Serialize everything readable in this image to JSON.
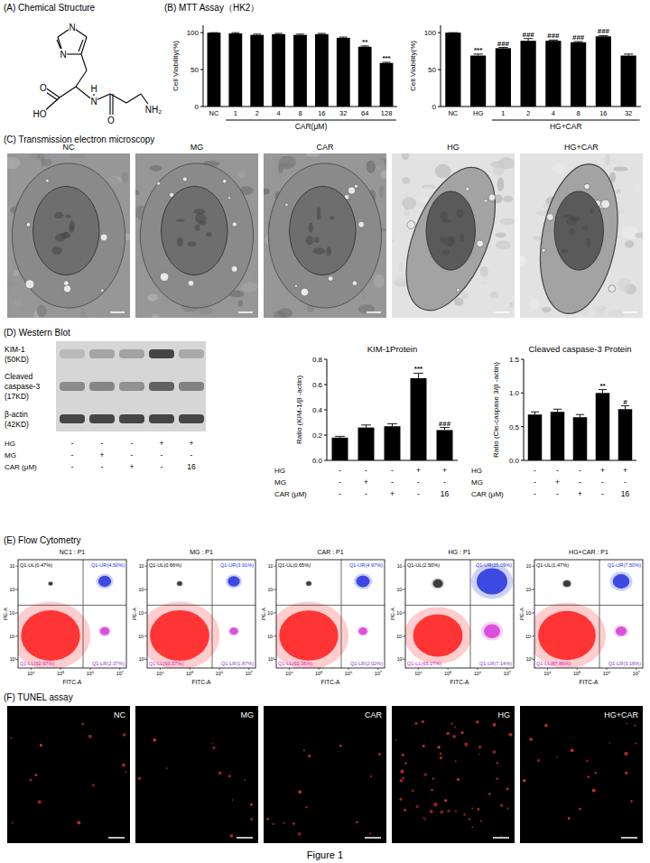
{
  "figure_label": "Figure 1",
  "panel_a": {
    "heading": "(A) Chemical Structure",
    "atoms": [
      "N",
      "N",
      "HO",
      "O",
      "H",
      "N",
      "O",
      "NH₂"
    ]
  },
  "panel_b": {
    "heading": "(B) MTT Assay（HK2）"
  },
  "panel_c": {
    "heading": "(C) Transmission electron microscopy",
    "images": [
      "NC",
      "MG",
      "CAR",
      "HG",
      "HG+CAR"
    ]
  },
  "panel_d": {
    "heading": "(D) Western Blot",
    "bands": [
      {
        "lines": [
          "KIM-1"
        ],
        "size": "(50KD)"
      },
      {
        "lines": [
          "Cleaved",
          "caspase-3"
        ],
        "size": "(17KD)"
      },
      {
        "lines": [
          "β-actin"
        ],
        "size": "(42KD)"
      }
    ],
    "conditions": [
      {
        "label": "HG",
        "values": [
          "-",
          "-",
          "-",
          "+",
          "+"
        ]
      },
      {
        "label": "MG",
        "values": [
          "-",
          "+",
          "-",
          "-",
          "-"
        ]
      },
      {
        "label": "CAR (μM)",
        "values": [
          "-",
          "-",
          "+",
          "-",
          "16"
        ]
      }
    ]
  },
  "panel_e": {
    "heading": "(E) Flow Cytometry",
    "x_label": "FITC-A",
    "y_label": "PE-A",
    "x_tick_labels": [
      "10⁴",
      "10⁵",
      "10⁶",
      "10⁷"
    ],
    "y_tick_labels": [
      "10³",
      "10⁴",
      "10⁵",
      "10⁶",
      "10⁷"
    ],
    "plots": [
      {
        "title": "NC1 : P1",
        "quadrants": [
          {
            "value": 0.47,
            "label": "Q1-UL(0.47%)"
          },
          {
            "value": 4.5,
            "label": "Q1-UR(4.50%)"
          },
          {
            "value": 92.67,
            "label": "Q1-LL(92.67%)"
          },
          {
            "value": 2.37,
            "label": "Q1-LR(2.37%)"
          }
        ]
      },
      {
        "title": "MG : P1",
        "quadrants": [
          {
            "value": 0.66,
            "label": "Q1-UL(0.66%)"
          },
          {
            "value": 3.91,
            "label": "Q1-UR(3.91%)"
          },
          {
            "value": 93.57,
            "label": "Q1-LL(93.57%)"
          },
          {
            "value": 1.87,
            "label": "Q1-LR(1.87%)"
          }
        ]
      },
      {
        "title": "CAR : P1",
        "quadrants": [
          {
            "value": 0.65,
            "label": "Q1-UL(0.65%)"
          },
          {
            "value": 4.97,
            "label": "Q1-UR(4.97%)"
          },
          {
            "value": 92.36,
            "label": "Q1-LL(92.36%)"
          },
          {
            "value": 2.02,
            "label": "Q1-LR(2.02%)"
          }
        ]
      },
      {
        "title": "HG : P1",
        "quadrants": [
          {
            "value": 2.5,
            "label": "Q1-UL(2.50%)"
          },
          {
            "value": 25.09,
            "label": "Q1-UR(25.09%)"
          },
          {
            "value": 65.27,
            "label": "Q1-LL(65.27%)"
          },
          {
            "value": 7.14,
            "label": "Q1-LR(7.14%)"
          }
        ]
      },
      {
        "title": "HG+CAR : P1",
        "quadrants": [
          {
            "value": 1.47,
            "label": "Q1-UL(1.47%)"
          },
          {
            "value": 7.5,
            "label": "Q1-UR(7.50%)"
          },
          {
            "value": 87.86,
            "label": "Q1-LL(87.86%)"
          },
          {
            "value": 3.18,
            "label": "Q1-LR(3.18%)"
          }
        ]
      }
    ]
  },
  "panel_f": {
    "heading": "(F) TUNEL assay",
    "images": [
      "NC",
      "MG",
      "CAR",
      "HG",
      "HG+CAR"
    ]
  },
  "chart_data": [
    {
      "type": "bar",
      "categories": [
        "NC",
        "1",
        "2",
        "4",
        "8",
        "16",
        "32",
        "64",
        "128"
      ],
      "values": [
        100,
        99,
        97,
        98,
        97,
        98,
        93,
        81,
        59
      ],
      "errors": [
        0,
        1,
        1,
        1,
        1,
        1,
        1,
        1,
        1
      ],
      "significance": [
        null,
        null,
        null,
        null,
        null,
        null,
        null,
        "**",
        "***"
      ],
      "y_label": "Cell Viability(%)",
      "ylim": [
        0,
        110
      ],
      "yticks": [
        0,
        50,
        100
      ],
      "color": "#000000",
      "group": {
        "label": "CAR(μM)",
        "from": 1,
        "to": 8
      }
    },
    {
      "type": "bar",
      "categories": [
        "NC",
        "HG",
        "1",
        "2",
        "4",
        "8",
        "16",
        "32"
      ],
      "values": [
        100,
        69,
        79,
        89,
        89,
        87,
        95,
        69
      ],
      "errors": [
        0,
        2,
        1,
        3,
        1,
        1,
        1,
        2
      ],
      "significance": [
        null,
        "***",
        "###",
        "###",
        "###",
        "###",
        "###",
        null
      ],
      "y_label": "Cell Viability(%)",
      "ylim": [
        0,
        110
      ],
      "yticks": [
        0,
        50,
        100
      ],
      "color": "#000000",
      "group": {
        "label": "HG+CAR",
        "from": 2,
        "to": 7
      }
    },
    {
      "type": "bar",
      "title": "KIM-1Protein",
      "categories": [
        null,
        null,
        null,
        null,
        null
      ],
      "values": [
        0.18,
        0.26,
        0.27,
        0.65,
        0.24
      ],
      "errors": [
        0.01,
        0.02,
        0.02,
        0.04,
        0.02
      ],
      "significance": [
        null,
        null,
        null,
        "***",
        "###"
      ],
      "y_label": "Ratio (KIM-1/β -actin)",
      "ylim": [
        0,
        0.8
      ],
      "yticks": [
        {
          "value": 0,
          "label": "0.0"
        },
        0.2,
        0.4,
        0.6,
        0.8
      ],
      "color": "#000000"
    },
    {
      "type": "bar",
      "title": "Cleaved caspase-3 Protein",
      "categories": [
        null,
        null,
        null,
        null,
        null
      ],
      "values": [
        0.68,
        0.72,
        0.64,
        1.0,
        0.76
      ],
      "errors": [
        0.04,
        0.04,
        0.04,
        0.05,
        0.05
      ],
      "significance": [
        null,
        null,
        null,
        "**",
        "#"
      ],
      "y_label": "Ratio (Cle-caspase 3/β -actin)",
      "ylim": [
        0,
        1.5
      ],
      "yticks": [
        {
          "value": 0,
          "label": "0.0"
        },
        0.5,
        {
          "value": 1,
          "label": "1.0"
        },
        1.5
      ],
      "color": "#000000"
    }
  ]
}
